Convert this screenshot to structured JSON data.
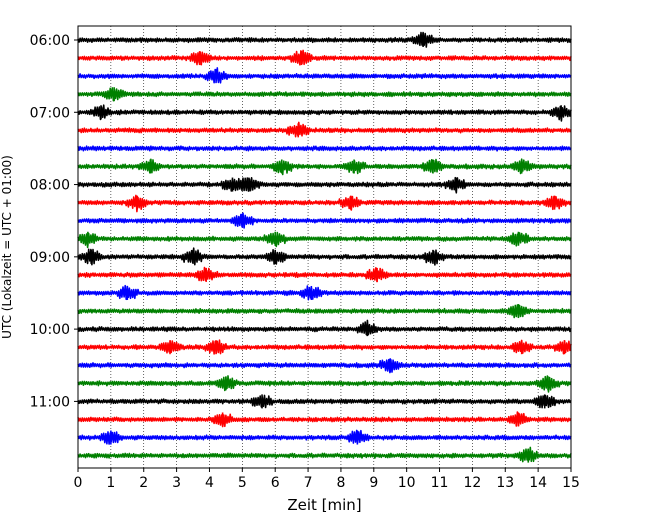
{
  "chart_data": {
    "type": "line",
    "xlabel": "Zeit  [min]",
    "ylabel": "UTC (Lokalzeit = UTC + 01:00)",
    "xlim": [
      0,
      15
    ],
    "x_ticks": [
      0,
      1,
      2,
      3,
      4,
      5,
      6,
      7,
      8,
      9,
      10,
      11,
      12,
      13,
      14,
      15
    ],
    "y_tick_labels": [
      "06:00",
      "07:00",
      "08:00",
      "09:00",
      "10:00",
      "11:00"
    ],
    "grid": "vertical dotted",
    "trace_interval_minutes": 15,
    "traces": [
      {
        "start": "06:00",
        "color": "#000000",
        "events": [
          10.5
        ]
      },
      {
        "start": "06:15",
        "color": "#ff0000",
        "events": [
          3.7,
          6.8
        ]
      },
      {
        "start": "06:30",
        "color": "#0000ff",
        "events": [
          4.2
        ]
      },
      {
        "start": "06:45",
        "color": "#008000",
        "events": [
          1.1
        ]
      },
      {
        "start": "07:00",
        "color": "#000000",
        "events": [
          0.7,
          14.7
        ]
      },
      {
        "start": "07:15",
        "color": "#ff0000",
        "events": [
          6.7
        ]
      },
      {
        "start": "07:30",
        "color": "#0000ff",
        "events": []
      },
      {
        "start": "07:45",
        "color": "#008000",
        "events": [
          2.2,
          6.2,
          8.4,
          10.8,
          13.5
        ]
      },
      {
        "start": "08:00",
        "color": "#000000",
        "events": [
          4.7,
          5.2,
          11.5
        ]
      },
      {
        "start": "08:15",
        "color": "#ff0000",
        "events": [
          1.8,
          8.3,
          14.5
        ]
      },
      {
        "start": "08:30",
        "color": "#0000ff",
        "events": [
          5.0
        ]
      },
      {
        "start": "08:45",
        "color": "#008000",
        "events": [
          0.3,
          6.0,
          13.4
        ]
      },
      {
        "start": "09:00",
        "color": "#000000",
        "events": [
          0.4,
          3.5,
          6.0,
          10.8
        ]
      },
      {
        "start": "09:15",
        "color": "#ff0000",
        "events": [
          3.9,
          9.1
        ]
      },
      {
        "start": "09:30",
        "color": "#0000ff",
        "events": [
          1.5,
          7.1
        ]
      },
      {
        "start": "09:45",
        "color": "#008000",
        "events": [
          13.4
        ]
      },
      {
        "start": "10:00",
        "color": "#000000",
        "events": [
          8.8
        ]
      },
      {
        "start": "10:15",
        "color": "#ff0000",
        "events": [
          2.8,
          4.2,
          13.5,
          14.8
        ]
      },
      {
        "start": "10:30",
        "color": "#0000ff",
        "events": [
          9.5
        ]
      },
      {
        "start": "10:45",
        "color": "#008000",
        "events": [
          4.5,
          14.3
        ]
      },
      {
        "start": "11:00",
        "color": "#000000",
        "events": [
          5.6,
          14.2
        ]
      },
      {
        "start": "11:15",
        "color": "#ff0000",
        "events": [
          4.4,
          13.4
        ]
      },
      {
        "start": "11:30",
        "color": "#0000ff",
        "events": [
          1.0,
          8.5
        ]
      },
      {
        "start": "11:45",
        "color": "#008000",
        "events": [
          13.7
        ]
      }
    ]
  }
}
